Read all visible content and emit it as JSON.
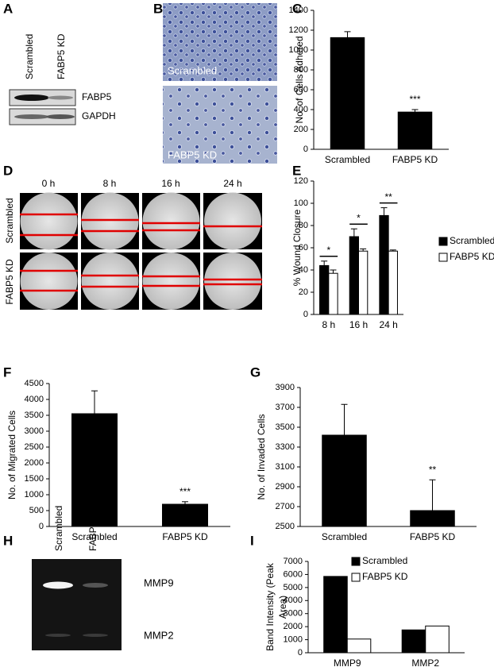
{
  "figure": {
    "panel_labels": [
      "A",
      "B",
      "C",
      "D",
      "E",
      "F",
      "G",
      "H",
      "I"
    ]
  },
  "blot": {
    "lanes": [
      "Scrambled",
      "FABP5 KD"
    ],
    "bands": [
      "FABP5",
      "GAPDH"
    ]
  },
  "micrographs": {
    "labels": [
      "Scrambled",
      "FABP5 KD"
    ]
  },
  "wound_images": {
    "timepoints": [
      "0 h",
      "8 h",
      "16 h",
      "24 h"
    ],
    "rows": [
      "Scrambled",
      "FABP5 KD"
    ]
  },
  "zymogram": {
    "lanes": [
      "Scrambled",
      "FABP5 KD"
    ],
    "bands": [
      "MMP9",
      "MMP2"
    ]
  },
  "chart_data": [
    {
      "type": "bar",
      "ylabel": "No. of Cells Adhered",
      "categories": [
        "Scrambled",
        "FABP5 KD"
      ],
      "values": [
        1125,
        375
      ],
      "errors": [
        60,
        25
      ],
      "color": "#000000",
      "annotations": [
        null,
        "***"
      ],
      "ylim": [
        0,
        1400
      ],
      "yticks": [
        0,
        200,
        400,
        600,
        800,
        1000,
        1200,
        1400
      ]
    },
    {
      "type": "bar",
      "ylabel": "% Wound Closure",
      "categories": [
        "8 h",
        "16 h",
        "24 h"
      ],
      "series": [
        {
          "name": "Scrambled",
          "color": "#000000",
          "values": [
            44,
            70,
            89
          ],
          "errors": [
            4,
            7,
            7
          ]
        },
        {
          "name": "FABP5 KD",
          "color": "#ffffff",
          "values": [
            37,
            57,
            57
          ],
          "errors": [
            3,
            2,
            1
          ]
        }
      ],
      "annotations": [
        "*",
        "*",
        "**"
      ],
      "legend": "right",
      "ylim": [
        0,
        120
      ],
      "yticks": [
        0,
        20,
        40,
        60,
        80,
        100,
        120
      ]
    },
    {
      "type": "bar",
      "ylabel": "No. of Migrated Cells",
      "categories": [
        "Scrambled",
        "FABP5 KD"
      ],
      "values": [
        3550,
        700
      ],
      "errors": [
        720,
        80
      ],
      "color": "#000000",
      "annotations": [
        null,
        "***"
      ],
      "ylim": [
        0,
        4500
      ],
      "yticks": [
        0,
        500,
        1000,
        1500,
        2000,
        2500,
        3000,
        3500,
        4000,
        4500
      ]
    },
    {
      "type": "bar",
      "ylabel": "No. of Invaded Cells",
      "categories": [
        "Scrambled",
        "FABP5 KD"
      ],
      "values": [
        3420,
        2660
      ],
      "errors": [
        310,
        310
      ],
      "color": "#000000",
      "annotations": [
        null,
        "**"
      ],
      "ylim": [
        2500,
        3900
      ],
      "yticks": [
        2500,
        2700,
        2900,
        3100,
        3300,
        3500,
        3700,
        3900
      ]
    },
    {
      "type": "bar",
      "ylabel_lines": [
        "Band Intensity (Peak",
        "Area)"
      ],
      "categories": [
        "MMP9",
        "MMP2"
      ],
      "series": [
        {
          "name": "Scrambled",
          "color": "#000000",
          "values": [
            5850,
            1750
          ]
        },
        {
          "name": "FABP5 KD",
          "color": "#ffffff",
          "values": [
            1050,
            2050
          ]
        }
      ],
      "legend": "top",
      "ylim": [
        0,
        7000
      ],
      "yticks": [
        0,
        1000,
        2000,
        3000,
        4000,
        5000,
        6000,
        7000
      ]
    }
  ]
}
